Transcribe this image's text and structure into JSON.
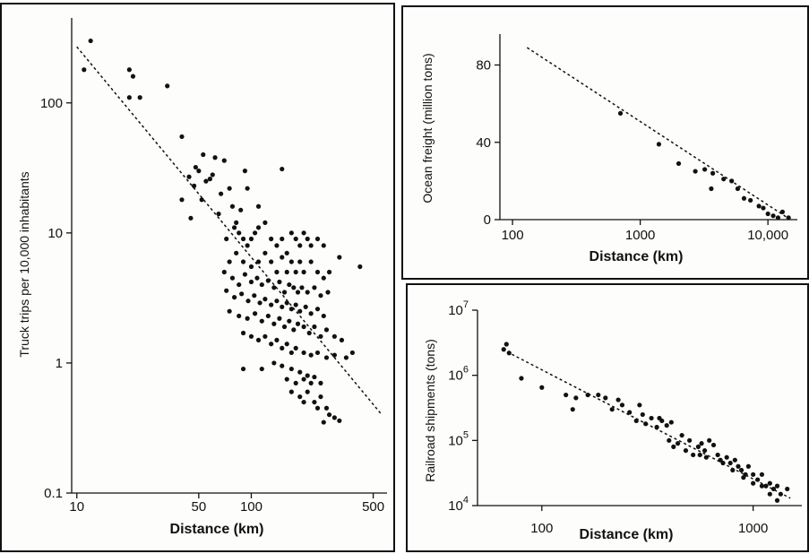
{
  "chart_data": [
    {
      "id": "truck",
      "type": "scatter",
      "xlabel": "Distance (km)",
      "ylabel": "Truck trips per 10,000 inhabitants",
      "x_scale": "log",
      "y_scale": "log",
      "xlim": [
        8.5,
        600
      ],
      "ylim": [
        0.1,
        450
      ],
      "x_ticks": [
        {
          "v": 10,
          "label": "10"
        },
        {
          "v": 50,
          "label": "50"
        },
        {
          "v": 100,
          "label": "100"
        },
        {
          "v": 500,
          "label": "500"
        }
      ],
      "y_ticks": [
        {
          "v": 0.1,
          "label": "0.1"
        },
        {
          "v": 1,
          "label": "1"
        },
        {
          "v": 10,
          "label": "10"
        },
        {
          "v": 100,
          "label": "100"
        }
      ],
      "trend": {
        "x1": 10,
        "y1": 270,
        "x2": 560,
        "y2": 0.4
      },
      "points": [
        [
          12,
          300
        ],
        [
          11,
          180
        ],
        [
          20,
          180
        ],
        [
          21,
          160
        ],
        [
          23,
          110
        ],
        [
          33,
          135
        ],
        [
          20,
          110
        ],
        [
          40,
          55
        ],
        [
          48,
          32
        ],
        [
          50,
          30
        ],
        [
          53,
          40
        ],
        [
          58,
          26
        ],
        [
          62,
          38
        ],
        [
          55,
          25
        ],
        [
          52,
          18
        ],
        [
          44,
          27
        ],
        [
          47,
          23
        ],
        [
          40,
          18
        ],
        [
          70,
          36
        ],
        [
          75,
          22
        ],
        [
          60,
          28
        ],
        [
          67,
          20
        ],
        [
          45,
          13
        ],
        [
          65,
          14
        ],
        [
          78,
          16
        ],
        [
          82,
          12
        ],
        [
          87,
          15
        ],
        [
          72,
          9
        ],
        [
          92,
          30
        ],
        [
          95,
          22
        ],
        [
          110,
          16
        ],
        [
          150,
          31
        ],
        [
          80,
          11
        ],
        [
          85,
          10
        ],
        [
          90,
          9
        ],
        [
          95,
          8
        ],
        [
          100,
          9
        ],
        [
          105,
          10
        ],
        [
          110,
          11
        ],
        [
          120,
          12
        ],
        [
          130,
          9
        ],
        [
          140,
          8
        ],
        [
          150,
          9
        ],
        [
          160,
          7
        ],
        [
          170,
          10
        ],
        [
          180,
          9
        ],
        [
          190,
          8
        ],
        [
          200,
          10
        ],
        [
          210,
          9
        ],
        [
          220,
          8
        ],
        [
          240,
          9
        ],
        [
          260,
          8
        ],
        [
          75,
          6
        ],
        [
          82,
          7
        ],
        [
          90,
          6
        ],
        [
          100,
          5.5
        ],
        [
          110,
          6
        ],
        [
          120,
          7
        ],
        [
          130,
          6
        ],
        [
          140,
          5
        ],
        [
          150,
          6.5
        ],
        [
          160,
          5
        ],
        [
          170,
          6
        ],
        [
          180,
          5
        ],
        [
          190,
          6
        ],
        [
          200,
          5
        ],
        [
          220,
          6
        ],
        [
          240,
          5
        ],
        [
          260,
          4.5
        ],
        [
          280,
          5
        ],
        [
          320,
          6.5
        ],
        [
          420,
          5.5
        ],
        [
          70,
          5
        ],
        [
          78,
          4.5
        ],
        [
          85,
          4
        ],
        [
          92,
          4.8
        ],
        [
          100,
          4.2
        ],
        [
          108,
          4.5
        ],
        [
          115,
          4
        ],
        [
          125,
          4.3
        ],
        [
          135,
          3.8
        ],
        [
          145,
          4.2
        ],
        [
          155,
          3.5
        ],
        [
          165,
          4
        ],
        [
          175,
          3.8
        ],
        [
          185,
          3.5
        ],
        [
          195,
          3.8
        ],
        [
          210,
          3.5
        ],
        [
          230,
          3.8
        ],
        [
          250,
          3.3
        ],
        [
          275,
          3.5
        ],
        [
          72,
          3.6
        ],
        [
          80,
          3.2
        ],
        [
          88,
          3.4
        ],
        [
          96,
          3
        ],
        [
          104,
          3.3
        ],
        [
          112,
          2.9
        ],
        [
          120,
          3.1
        ],
        [
          130,
          2.8
        ],
        [
          140,
          3
        ],
        [
          150,
          2.7
        ],
        [
          160,
          2.9
        ],
        [
          170,
          2.6
        ],
        [
          180,
          2.8
        ],
        [
          190,
          2.5
        ],
        [
          205,
          2.7
        ],
        [
          220,
          2.4
        ],
        [
          240,
          2.6
        ],
        [
          260,
          2.3
        ],
        [
          75,
          2.5
        ],
        [
          85,
          2.3
        ],
        [
          95,
          2.2
        ],
        [
          105,
          2.4
        ],
        [
          115,
          2.1
        ],
        [
          125,
          2.3
        ],
        [
          135,
          2
        ],
        [
          145,
          2.2
        ],
        [
          155,
          1.9
        ],
        [
          165,
          2.1
        ],
        [
          175,
          1.8
        ],
        [
          185,
          2
        ],
        [
          200,
          1.9
        ],
        [
          215,
          1.7
        ],
        [
          230,
          1.9
        ],
        [
          250,
          1.6
        ],
        [
          270,
          1.8
        ],
        [
          300,
          1.6
        ],
        [
          330,
          1.5
        ],
        [
          90,
          1.7
        ],
        [
          100,
          1.6
        ],
        [
          110,
          1.5
        ],
        [
          120,
          1.6
        ],
        [
          130,
          1.4
        ],
        [
          140,
          1.5
        ],
        [
          150,
          1.3
        ],
        [
          160,
          1.4
        ],
        [
          170,
          1.2
        ],
        [
          180,
          1.3
        ],
        [
          200,
          1.2
        ],
        [
          220,
          1.15
        ],
        [
          240,
          1.2
        ],
        [
          270,
          1.1
        ],
        [
          300,
          1.15
        ],
        [
          350,
          1.1
        ],
        [
          380,
          1.2
        ],
        [
          90,
          0.9
        ],
        [
          115,
          0.9
        ],
        [
          135,
          1
        ],
        [
          150,
          0.95
        ],
        [
          170,
          0.9
        ],
        [
          190,
          0.85
        ],
        [
          200,
          0.75
        ],
        [
          210,
          0.8
        ],
        [
          220,
          0.7
        ],
        [
          230,
          0.78
        ],
        [
          250,
          0.7
        ],
        [
          180,
          0.7
        ],
        [
          160,
          0.75
        ],
        [
          170,
          0.6
        ],
        [
          190,
          0.55
        ],
        [
          210,
          0.6
        ],
        [
          230,
          0.5
        ],
        [
          250,
          0.55
        ],
        [
          270,
          0.45
        ],
        [
          240,
          0.45
        ],
        [
          280,
          0.4
        ],
        [
          300,
          0.38
        ],
        [
          260,
          0.35
        ],
        [
          320,
          0.36
        ],
        [
          200,
          0.5
        ]
      ]
    },
    {
      "id": "ocean",
      "type": "scatter",
      "xlabel": "Distance (km)",
      "ylabel": "Ocean freight (million tons)",
      "x_scale": "log",
      "y_scale": "linear",
      "xlim": [
        70,
        17000
      ],
      "ylim": [
        0,
        96
      ],
      "x_ticks": [
        {
          "v": 100,
          "label": "100"
        },
        {
          "v": 1000,
          "label": "1000"
        },
        {
          "v": 10000,
          "label": "10,000"
        }
      ],
      "y_ticks": [
        {
          "v": 0,
          "label": "0"
        },
        {
          "v": 40,
          "label": "40"
        },
        {
          "v": 80,
          "label": "80"
        }
      ],
      "trend": {
        "x1": 130,
        "y1": 89,
        "x2": 15000,
        "y2": 0
      },
      "points": [
        [
          700,
          55
        ],
        [
          1400,
          39
        ],
        [
          2000,
          29
        ],
        [
          2700,
          25
        ],
        [
          3200,
          26
        ],
        [
          3600,
          16
        ],
        [
          3700,
          24
        ],
        [
          4500,
          21
        ],
        [
          5200,
          20
        ],
        [
          5800,
          16
        ],
        [
          6500,
          11
        ],
        [
          7300,
          10
        ],
        [
          8500,
          7
        ],
        [
          9200,
          6
        ],
        [
          10000,
          3
        ],
        [
          11000,
          2
        ],
        [
          13000,
          4
        ],
        [
          14500,
          1
        ],
        [
          12000,
          1
        ]
      ]
    },
    {
      "id": "rail",
      "type": "scatter",
      "xlabel": "Distance (km)",
      "ylabel": "Railroad shipments (tons)",
      "x_scale": "log",
      "y_scale": "log",
      "xlim": [
        45,
        1700
      ],
      "ylim": [
        10000,
        10000000
      ],
      "x_ticks": [
        {
          "v": 100,
          "label": "100"
        },
        {
          "v": 1000,
          "label": "1000"
        }
      ],
      "y_ticks": [
        {
          "v": 10000,
          "label": "10",
          "exp": "4"
        },
        {
          "v": 100000,
          "label": "10",
          "exp": "5"
        },
        {
          "v": 1000000,
          "label": "10",
          "exp": "6"
        },
        {
          "v": 10000000,
          "label": "10",
          "exp": "7"
        }
      ],
      "trend": {
        "x1": 65,
        "y1": 2500000,
        "x2": 1500,
        "y2": 13000
      },
      "points": [
        [
          68,
          3000000
        ],
        [
          66,
          2500000
        ],
        [
          70,
          2200000
        ],
        [
          80,
          900000
        ],
        [
          100,
          650000
        ],
        [
          130,
          500000
        ],
        [
          140,
          300000
        ],
        [
          145,
          450000
        ],
        [
          165,
          500000
        ],
        [
          185,
          500000
        ],
        [
          200,
          450000
        ],
        [
          230,
          420000
        ],
        [
          215,
          300000
        ],
        [
          240,
          350000
        ],
        [
          260,
          270000
        ],
        [
          280,
          200000
        ],
        [
          290,
          350000
        ],
        [
          310,
          180000
        ],
        [
          330,
          220000
        ],
        [
          350,
          160000
        ],
        [
          370,
          200000
        ],
        [
          390,
          170000
        ],
        [
          410,
          190000
        ],
        [
          300,
          250000
        ],
        [
          360,
          220000
        ],
        [
          400,
          100000
        ],
        [
          420,
          80000
        ],
        [
          440,
          90000
        ],
        [
          460,
          120000
        ],
        [
          480,
          70000
        ],
        [
          500,
          100000
        ],
        [
          520,
          60000
        ],
        [
          550,
          80000
        ],
        [
          570,
          90000
        ],
        [
          590,
          70000
        ],
        [
          620,
          100000
        ],
        [
          650,
          85000
        ],
        [
          680,
          60000
        ],
        [
          560,
          60000
        ],
        [
          600,
          55000
        ],
        [
          700,
          50000
        ],
        [
          720,
          45000
        ],
        [
          750,
          55000
        ],
        [
          780,
          45000
        ],
        [
          820,
          50000
        ],
        [
          850,
          40000
        ],
        [
          880,
          35000
        ],
        [
          920,
          30000
        ],
        [
          950,
          40000
        ],
        [
          1000,
          30000
        ],
        [
          1050,
          25000
        ],
        [
          1100,
          30000
        ],
        [
          1150,
          20000
        ],
        [
          1200,
          22000
        ],
        [
          1250,
          18000
        ],
        [
          1300,
          20000
        ],
        [
          1350,
          15000
        ],
        [
          1450,
          18000
        ],
        [
          800,
          35000
        ],
        [
          900,
          27000
        ],
        [
          1000,
          22000
        ],
        [
          1100,
          20000
        ],
        [
          1200,
          15000
        ],
        [
          1300,
          12000
        ]
      ]
    }
  ]
}
